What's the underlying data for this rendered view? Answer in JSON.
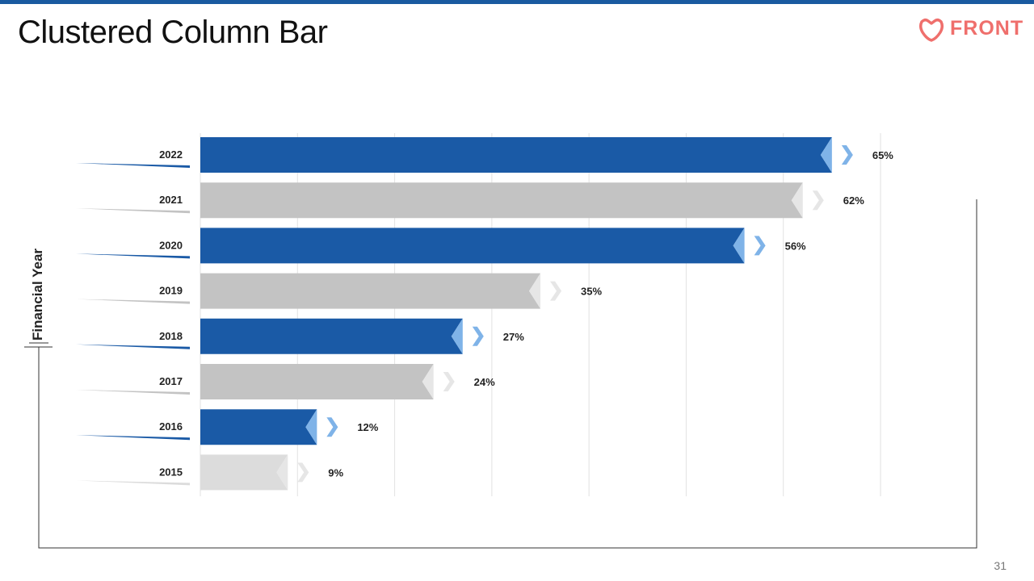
{
  "slide": {
    "title": "Clustered Column Bar",
    "logo_text": "FRONT",
    "page_number": "31"
  },
  "colors": {
    "blue": "#1a5aa6",
    "gray": "#c3c3c3",
    "light_gray": "#dcdcdc",
    "chevron_blue": "#7fb3e8",
    "chevron_light": "#e6e6e6",
    "grid": "#e2e2e2",
    "accent_top": "#1a5aa0",
    "logo": "#ef6f6c"
  },
  "chart_data": {
    "type": "bar",
    "orientation": "horizontal",
    "title": "",
    "ylabel": "Financial Year",
    "xlabel": "",
    "categories": [
      "2022",
      "2021",
      "2020",
      "2019",
      "2018",
      "2017",
      "2016",
      "2015"
    ],
    "values": [
      65,
      62,
      56,
      35,
      27,
      24,
      12,
      9
    ],
    "labels": [
      "65%",
      "62%",
      "56%",
      "35%",
      "27%",
      "24%",
      "12%",
      "9%"
    ],
    "xlim": [
      0,
      70
    ],
    "grid": true
  }
}
